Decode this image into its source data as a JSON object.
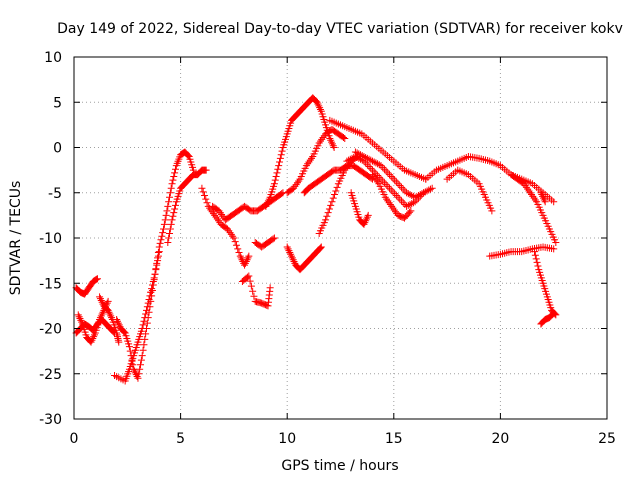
{
  "chart_data": {
    "type": "scatter",
    "title": "Day 149 of 2022, Sidereal Day-to-day VTEC variation (SDTVAR) for receiver kokv",
    "xlabel": "GPS time / hours",
    "ylabel": "SDTVAR / TECUs",
    "xlim": [
      0,
      25
    ],
    "ylim": [
      -30,
      10
    ],
    "xticks": [
      0,
      5,
      10,
      15,
      20,
      25
    ],
    "yticks": [
      -30,
      -25,
      -20,
      -15,
      -10,
      -5,
      0,
      5,
      10
    ],
    "grid": true,
    "marker": "+",
    "color": "#ff0000",
    "series": [
      {
        "name": "s1",
        "x": [
          0.1,
          0.3,
          0.5,
          0.7,
          0.9,
          1.1,
          1.3,
          1.5,
          1.7,
          1.9
        ],
        "y": [
          -20.5,
          -20.0,
          -19.5,
          -19.8,
          -20.2,
          -19.5,
          -19.0,
          -19.5,
          -20.0,
          -20.5
        ]
      },
      {
        "name": "s2",
        "x": [
          0.1,
          0.3,
          0.5,
          0.7,
          0.9,
          1.1
        ],
        "y": [
          -15.5,
          -16.0,
          -16.2,
          -15.5,
          -14.8,
          -14.5
        ]
      },
      {
        "name": "s3",
        "x": [
          0.2,
          0.4,
          0.6,
          0.8,
          1.0,
          1.2,
          1.4,
          1.6
        ],
        "y": [
          -18.5,
          -19.5,
          -21.0,
          -21.5,
          -20.5,
          -19.0,
          -18.0,
          -17.0
        ]
      },
      {
        "name": "s4",
        "x": [
          1.2,
          1.4,
          1.6,
          1.8,
          2.0,
          2.1
        ],
        "y": [
          -16.5,
          -17.5,
          -18.0,
          -19.0,
          -20.5,
          -21.5
        ]
      },
      {
        "name": "s5",
        "x": [
          2.0,
          2.2,
          2.4,
          2.6,
          2.8,
          3.0,
          3.2,
          3.4,
          3.6,
          3.8,
          4.0
        ],
        "y": [
          -19.0,
          -20.0,
          -20.5,
          -22.0,
          -24.5,
          -25.5,
          -23.0,
          -20.0,
          -17.0,
          -14.0,
          -11.5
        ]
      },
      {
        "name": "s6",
        "x": [
          1.9,
          2.4,
          2.6,
          2.8,
          3.0,
          3.2,
          3.4,
          3.6
        ],
        "y": [
          -25.2,
          -25.8,
          -24.5,
          -23.0,
          -21.5,
          -20.0,
          -18.0,
          -16.0
        ]
      },
      {
        "name": "s7",
        "x": [
          3.6,
          3.8,
          4.0,
          4.2,
          4.4,
          4.6,
          4.8,
          5.0,
          5.2,
          5.4,
          5.6
        ],
        "y": [
          -16.0,
          -14.0,
          -11.0,
          -9.0,
          -6.5,
          -4.0,
          -2.0,
          -0.8,
          -0.5,
          -1.0,
          -2.5
        ]
      },
      {
        "name": "s8",
        "x": [
          4.4,
          4.6,
          4.8,
          5.0,
          5.2,
          5.4,
          5.6,
          5.8,
          6.0,
          6.2
        ],
        "y": [
          -10.5,
          -8.0,
          -6.0,
          -4.5,
          -4.0,
          -3.5,
          -3.0,
          -3.0,
          -2.5,
          -2.5
        ]
      },
      {
        "name": "s9",
        "x": [
          6.0,
          6.3,
          6.6,
          6.9,
          7.2,
          7.5,
          7.8,
          8.0,
          8.2
        ],
        "y": [
          -4.5,
          -6.5,
          -7.5,
          -8.5,
          -9.0,
          -10.0,
          -12.0,
          -13.0,
          -12.0
        ]
      },
      {
        "name": "s10",
        "x": [
          6.5,
          6.8,
          7.1,
          7.4,
          7.7,
          8.0,
          8.3,
          8.6,
          8.9,
          9.2,
          9.5,
          9.8
        ],
        "y": [
          -6.5,
          -7.0,
          -8.0,
          -7.5,
          -7.0,
          -6.5,
          -7.0,
          -7.0,
          -6.5,
          -6.0,
          -5.5,
          -5.0
        ]
      },
      {
        "name": "s11",
        "x": [
          7.9,
          8.2,
          8.5,
          8.8,
          9.1,
          9.2
        ],
        "y": [
          -14.8,
          -14.2,
          -17.0,
          -17.2,
          -17.5,
          -15.5
        ]
      },
      {
        "name": "s12",
        "x": [
          8.5,
          8.8,
          9.1,
          9.4
        ],
        "y": [
          -10.5,
          -11.0,
          -10.5,
          -10.0
        ]
      },
      {
        "name": "s13",
        "x": [
          9.0,
          9.2,
          9.4,
          9.6,
          9.8,
          10.0,
          10.2,
          10.4,
          10.6,
          10.8,
          11.0,
          11.2,
          11.4,
          11.6,
          11.8,
          12.0,
          12.2
        ],
        "y": [
          -6.5,
          -5.5,
          -4.0,
          -2.0,
          0.0,
          1.5,
          3.0,
          3.5,
          4.0,
          4.5,
          5.0,
          5.5,
          5.0,
          4.0,
          2.5,
          1.0,
          0.0
        ]
      },
      {
        "name": "s14",
        "x": [
          10.0,
          10.2,
          10.4,
          10.6,
          10.8,
          11.0,
          11.2,
          11.4,
          11.6
        ],
        "y": [
          -11.0,
          -12.0,
          -13.0,
          -13.5,
          -13.0,
          -12.5,
          -12.0,
          -11.5,
          -11.0
        ]
      },
      {
        "name": "s15",
        "x": [
          10.0,
          10.3,
          10.6,
          10.9,
          11.2,
          11.5,
          11.8,
          12.1,
          12.4,
          12.7
        ],
        "y": [
          -5.0,
          -4.5,
          -3.5,
          -2.0,
          -1.0,
          0.5,
          1.5,
          2.0,
          1.5,
          1.0
        ]
      },
      {
        "name": "s16",
        "x": [
          10.8,
          11.0,
          11.3,
          11.6,
          11.9,
          12.2,
          12.5,
          12.8,
          13.1,
          13.4,
          13.7,
          14.0
        ],
        "y": [
          -5.0,
          -4.5,
          -4.0,
          -3.5,
          -3.0,
          -2.5,
          -2.5,
          -2.0,
          -2.0,
          -2.5,
          -3.0,
          -3.5
        ]
      },
      {
        "name": "s17",
        "x": [
          11.5,
          11.8,
          12.1,
          12.4,
          12.7,
          13.0,
          13.3
        ],
        "y": [
          -9.5,
          -8.0,
          -6.0,
          -4.0,
          -2.5,
          -1.5,
          -1.0
        ]
      },
      {
        "name": "s18",
        "x": [
          12.0,
          12.5,
          13.0,
          13.5,
          14.0,
          14.5,
          15.0,
          15.5,
          16.0,
          16.5
        ],
        "y": [
          3.0,
          2.5,
          2.0,
          1.5,
          0.5,
          -0.5,
          -1.5,
          -2.5,
          -3.0,
          -3.5
        ]
      },
      {
        "name": "s19",
        "x": [
          12.8,
          13.2,
          13.6,
          14.0,
          14.4,
          14.8,
          15.2,
          15.6,
          16.0,
          16.4
        ],
        "y": [
          -1.5,
          -1.0,
          -1.5,
          -2.5,
          -3.5,
          -4.5,
          -5.5,
          -6.5,
          -6.0,
          -5.0
        ]
      },
      {
        "name": "s20",
        "x": [
          13.0,
          13.2,
          13.4,
          13.6,
          13.8
        ],
        "y": [
          -5.0,
          -6.5,
          -8.0,
          -8.5,
          -7.5
        ]
      },
      {
        "name": "s21",
        "x": [
          13.2,
          13.6,
          14.0,
          14.4,
          14.8,
          15.2,
          15.6,
          16.0,
          16.4,
          16.8
        ],
        "y": [
          -0.5,
          -1.0,
          -1.5,
          -2.0,
          -3.0,
          -4.0,
          -5.0,
          -5.5,
          -5.0,
          -4.5
        ]
      },
      {
        "name": "s22",
        "x": [
          14.0,
          14.3,
          14.6,
          14.9,
          15.2,
          15.5,
          15.8
        ],
        "y": [
          -3.0,
          -4.0,
          -5.5,
          -6.5,
          -7.5,
          -7.8,
          -7.0
        ]
      },
      {
        "name": "s23",
        "x": [
          16.5,
          17.0,
          17.5,
          18.0,
          18.5,
          19.0,
          19.5,
          20.0,
          20.5,
          21.0,
          21.5,
          22.0,
          22.5
        ],
        "y": [
          -3.5,
          -2.5,
          -2.0,
          -1.5,
          -1.0,
          -1.2,
          -1.5,
          -2.0,
          -3.0,
          -3.5,
          -4.0,
          -5.0,
          -6.0
        ]
      },
      {
        "name": "s24",
        "x": [
          17.5,
          18.0,
          18.5,
          19.0,
          19.3,
          19.6
        ],
        "y": [
          -3.5,
          -2.5,
          -3.0,
          -4.0,
          -5.5,
          -7.0
        ]
      },
      {
        "name": "s25",
        "x": [
          19.5,
          20.0,
          20.5,
          21.0,
          21.5,
          22.0,
          22.5
        ],
        "y": [
          -12.0,
          -11.8,
          -11.5,
          -11.5,
          -11.2,
          -11.0,
          -11.2
        ]
      },
      {
        "name": "s26",
        "x": [
          20.5,
          20.8,
          21.1,
          21.4,
          21.7,
          22.0,
          22.3,
          22.6
        ],
        "y": [
          -3.0,
          -3.5,
          -4.0,
          -5.0,
          -6.0,
          -7.5,
          -9.0,
          -10.5
        ]
      },
      {
        "name": "s27",
        "x": [
          21.6,
          21.8,
          22.0,
          22.2,
          22.4,
          22.6
        ],
        "y": [
          -11.5,
          -13.5,
          -15.0,
          -16.5,
          -18.0,
          -18.5
        ]
      },
      {
        "name": "s28",
        "x": [
          21.9,
          22.1,
          22.3,
          22.5
        ],
        "y": [
          -19.5,
          -19.0,
          -18.8,
          -18.3
        ]
      },
      {
        "name": "s29",
        "x": [
          21.9,
          22.1
        ],
        "y": [
          -5.0,
          -6.0
        ]
      }
    ]
  }
}
